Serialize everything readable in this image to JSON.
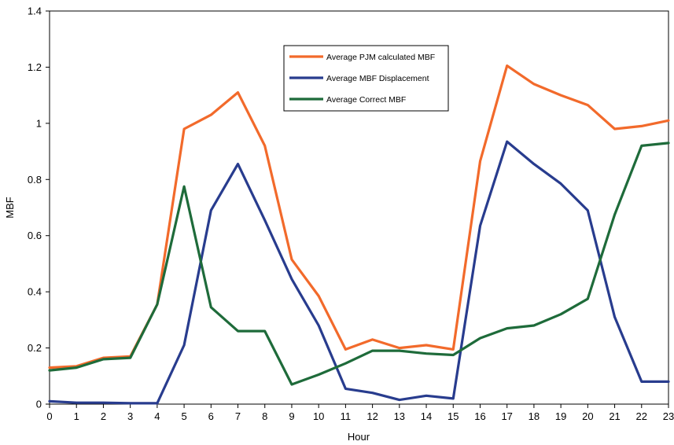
{
  "chart_data": {
    "type": "line",
    "xlabel": "Hour",
    "ylabel": "MBF",
    "xlim": [
      0,
      23
    ],
    "ylim": [
      0,
      1.4
    ],
    "x_ticks": [
      "0",
      "1",
      "2",
      "3",
      "4",
      "5",
      "6",
      "7",
      "8",
      "9",
      "10",
      "11",
      "12",
      "13",
      "14",
      "15",
      "16",
      "17",
      "18",
      "19",
      "20",
      "21",
      "22",
      "23"
    ],
    "y_ticks": [
      "0",
      "0.2",
      "0.4",
      "0.6",
      "0.8",
      "1",
      "1.2",
      "1.4"
    ],
    "y_tick_values": [
      0,
      0.2,
      0.4,
      0.6,
      0.8,
      1.0,
      1.2,
      1.4
    ],
    "grid": false,
    "legend_position": "top-center",
    "x": [
      0,
      1,
      2,
      3,
      4,
      5,
      6,
      7,
      8,
      9,
      10,
      11,
      12,
      13,
      14,
      15,
      16,
      17,
      18,
      19,
      20,
      21,
      22,
      23
    ],
    "series": [
      {
        "name": "Average PJM calculated MBF",
        "color": "#f26a2b",
        "values": [
          0.13,
          0.135,
          0.165,
          0.17,
          0.355,
          0.98,
          1.03,
          1.11,
          0.92,
          0.515,
          0.385,
          0.195,
          0.23,
          0.2,
          0.21,
          0.195,
          0.865,
          1.205,
          1.14,
          1.1,
          1.065,
          0.98,
          0.99,
          1.01
        ]
      },
      {
        "name": "Average MBF Displacement",
        "color": "#283c8e",
        "values": [
          0.01,
          0.005,
          0.005,
          0.003,
          0.003,
          0.21,
          0.69,
          0.855,
          0.655,
          0.445,
          0.28,
          0.055,
          0.04,
          0.015,
          0.03,
          0.02,
          0.635,
          0.935,
          0.855,
          0.785,
          0.69,
          0.31,
          0.08,
          0.08
        ]
      },
      {
        "name": "Average Correct MBF",
        "color": "#1e6b3a",
        "values": [
          0.12,
          0.13,
          0.16,
          0.165,
          0.355,
          0.775,
          0.345,
          0.26,
          0.26,
          0.07,
          0.105,
          0.145,
          0.19,
          0.19,
          0.18,
          0.175,
          0.235,
          0.27,
          0.28,
          0.32,
          0.375,
          0.675,
          0.92,
          0.93
        ]
      }
    ]
  }
}
